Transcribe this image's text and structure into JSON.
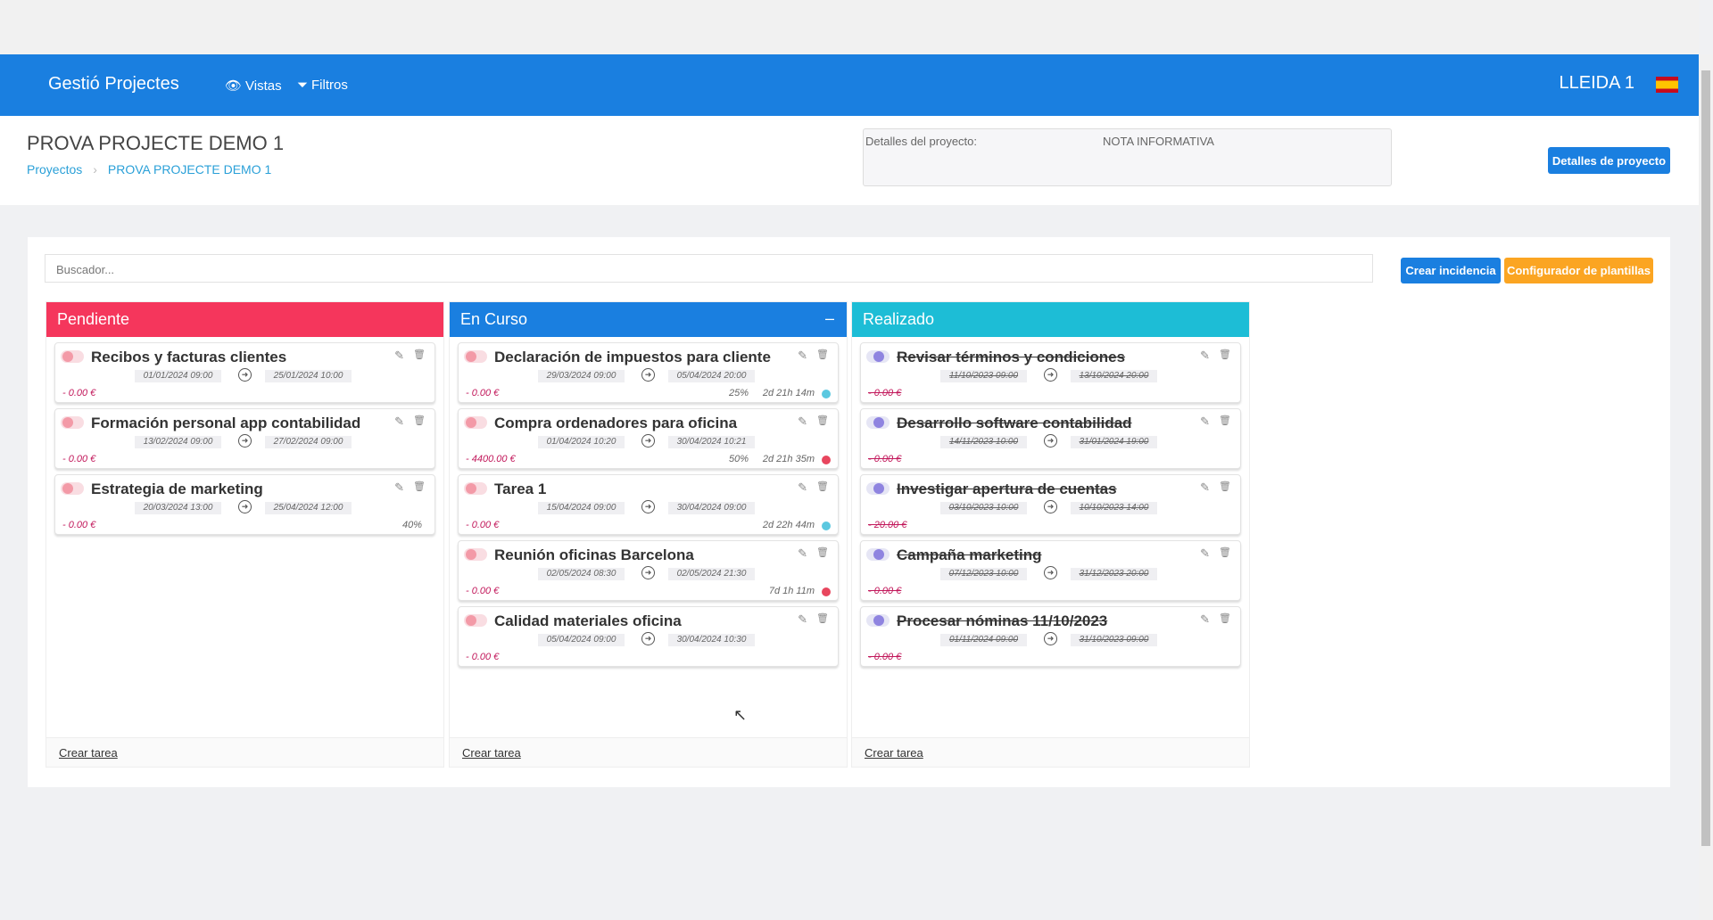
{
  "nav": {
    "brand": "Gestió Projectes",
    "vistas": "Vistas",
    "filtros": "Filtros",
    "user": "LLEIDA 1",
    "flag": "spain-flag"
  },
  "header": {
    "title": "PROVA PROJECTE DEMO 1",
    "breadcrumb": [
      "Proyectos",
      "PROVA PROJECTE DEMO 1"
    ],
    "details_label": "Detalles del proyecto:",
    "details_note": "NOTA INFORMATIVA",
    "details_button": "Detalles de proyecto"
  },
  "toolbar": {
    "search_placeholder": "Buscador...",
    "create_incident": "Crear incidencia",
    "template_config": "Configurador de plantillas"
  },
  "colors": {
    "primary": "#1a7fe0",
    "pendiente": "#f5365c",
    "en_curso": "#1a7fe0",
    "realizado": "#1dbdd6",
    "orange": "#fba522"
  },
  "columns": [
    {
      "title": "Pendiente",
      "color": "#f5365c",
      "done": false,
      "create": "Crear tarea",
      "cards": [
        {
          "title": "Recibos y facturas clientes",
          "start": "01/01/2024 09:00",
          "end": "25/01/2024 10:00",
          "amount": "- 0.00 €"
        },
        {
          "title": "Formación personal app contabilidad",
          "start": "13/02/2024 09:00",
          "end": "27/02/2024 09:00",
          "amount": "- 0.00 €"
        },
        {
          "title": "Estrategia de marketing",
          "start": "20/03/2024 13:00",
          "end": "25/04/2024 12:00",
          "amount": "- 0.00 €",
          "progress": "40%"
        }
      ]
    },
    {
      "title": "En Curso",
      "color": "#1a7fe0",
      "done": false,
      "minimize": "–",
      "create": "Crear tarea",
      "cards": [
        {
          "title": "Declaración de impuestos para cliente",
          "start": "29/03/2024 09:00",
          "end": "05/04/2024 20:00",
          "amount": "- 0.00 €",
          "progress": "25%",
          "remaining": "2d 21h 14m",
          "status": "#5bc8e0"
        },
        {
          "title": "Compra ordenadores para oficina",
          "start": "01/04/2024 10:20",
          "end": "30/04/2024 10:21",
          "amount": "- 4400.00 €",
          "progress": "50%",
          "remaining": "2d 21h 35m",
          "status": "#e8465e"
        },
        {
          "title": "Tarea 1",
          "start": "15/04/2024 09:00",
          "end": "30/04/2024 09:00",
          "amount": "- 0.00 €",
          "remaining": "2d 22h 44m",
          "status": "#5bc8e0"
        },
        {
          "title": "Reunión oficinas Barcelona",
          "start": "02/05/2024 08:30",
          "end": "02/05/2024 21:30",
          "amount": "- 0.00 €",
          "remaining": "7d 1h 11m",
          "status": "#e8465e"
        },
        {
          "title": "Calidad materiales oficina",
          "start": "05/04/2024 09:00",
          "end": "30/04/2024 10:30",
          "amount": "- 0.00 €"
        }
      ]
    },
    {
      "title": "Realizado",
      "color": "#1dbdd6",
      "done": true,
      "create": "Crear tarea",
      "cards": [
        {
          "title": "Revisar términos y condiciones",
          "start": "11/10/2023 09:00",
          "end": "13/10/2024 20:00",
          "amount": "- 0.00 €"
        },
        {
          "title": "Desarrollo software contabilidad",
          "start": "14/11/2023 10:00",
          "end": "31/01/2024 19:00",
          "amount": "- 0.00 €"
        },
        {
          "title": "Investigar apertura de cuentas",
          "start": "03/10/2023 10:00",
          "end": "10/10/2023 14:00",
          "amount": "- 20.00 €"
        },
        {
          "title": "Campaña marketing",
          "start": "07/12/2023 10:00",
          "end": "31/12/2023 20:00",
          "amount": "- 0.00 €"
        },
        {
          "title": "Procesar nóminas 11/10/2023",
          "start": "01/11/2024 09:00",
          "end": "31/10/2023 09:00",
          "amount": "- 0.00 €"
        }
      ]
    }
  ]
}
